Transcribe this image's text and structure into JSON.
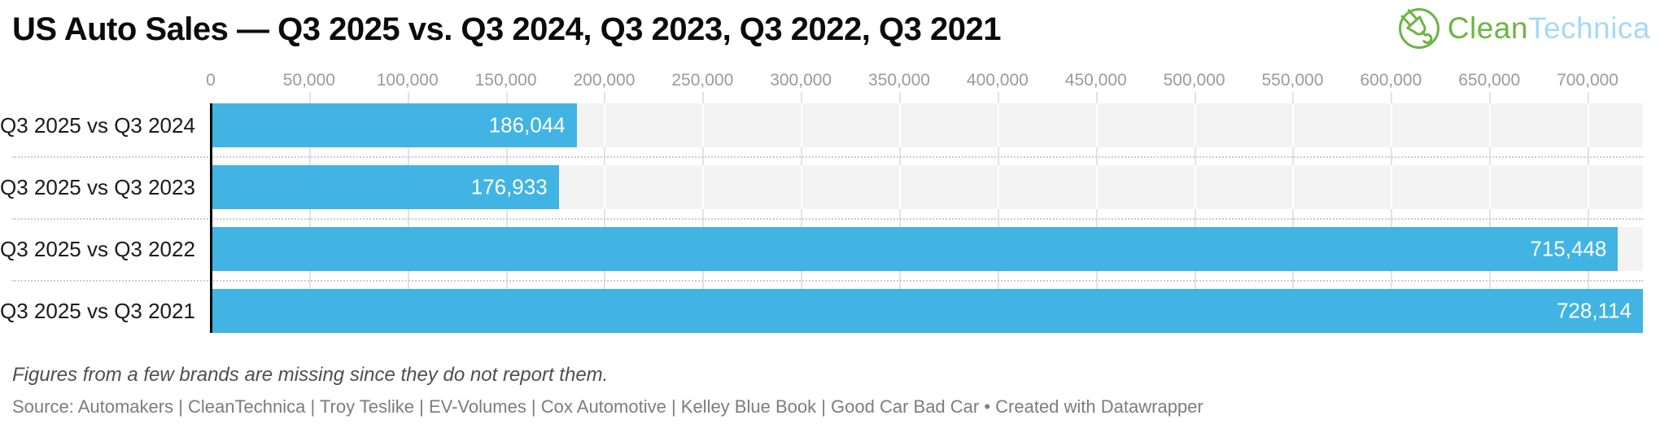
{
  "header": {
    "title": "US Auto Sales — Q3 2025 vs. Q3 2024, Q3 2023, Q3 2022, Q3 2021",
    "logo": {
      "part1": "Clean",
      "part2": "Technica"
    }
  },
  "chart_data": {
    "type": "bar",
    "orientation": "horizontal",
    "categories": [
      "Q3 2025 vs Q3 2024",
      "Q3 2025 vs Q3 2023",
      "Q3 2025 vs Q3 2022",
      "Q3 2025 vs Q3 2021"
    ],
    "values": [
      186044,
      176933,
      715448,
      728114
    ],
    "value_labels": [
      "186,044",
      "176,933",
      "715,448",
      "728,114"
    ],
    "axis": {
      "min": 0,
      "max": 728114,
      "ticks": [
        0,
        50000,
        100000,
        150000,
        200000,
        250000,
        300000,
        350000,
        400000,
        450000,
        500000,
        550000,
        600000,
        650000,
        700000
      ],
      "tick_labels": [
        "0",
        "50,000",
        "100,000",
        "150,000",
        "200,000",
        "250,000",
        "300,000",
        "350,000",
        "400,000",
        "450,000",
        "500,000",
        "550,000",
        "600,000",
        "650,000",
        "700,000"
      ]
    },
    "legend": "none",
    "grid": "vertical",
    "colors": {
      "bar": "#41b4e3",
      "band_background": "#f3f3f3",
      "gridline": "#e3e3e3",
      "band_gridline": "#ffffff",
      "axis_line": "#000000",
      "tick_text": "#9b9b9b",
      "category_text": "#1a1a1a",
      "value_text": "#ffffff",
      "logo_green": "#6cb544",
      "logo_blue": "#a6d9f4"
    }
  },
  "footer": {
    "footnote": "Figures from a few brands are missing since they do not report them.",
    "source": "Source: Automakers | CleanTechnica | Troy Teslike | EV-Volumes | Cox Automotive | Kelley Blue Book | Good Car Bad Car • Created with Datawrapper"
  }
}
